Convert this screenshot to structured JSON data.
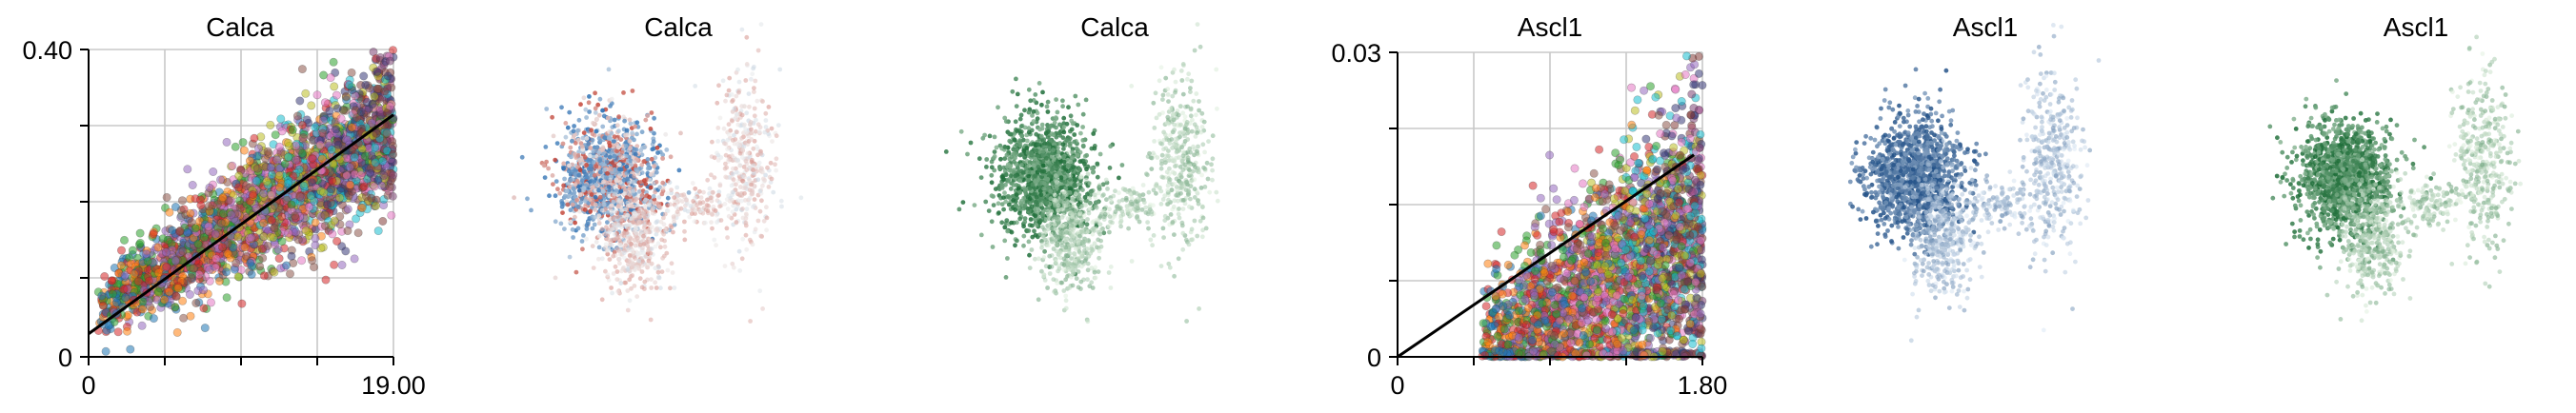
{
  "chart_data": [
    {
      "type": "scatter",
      "title": "Calca",
      "xlabel": "",
      "ylabel": "",
      "x_tick_labels": [
        "0",
        "19.00"
      ],
      "y_tick_labels": [
        "0",
        "0.40"
      ],
      "xlim": [
        0,
        19.0
      ],
      "ylim": [
        0,
        0.4
      ],
      "grid": true,
      "legend": "none",
      "point_colors": [
        "#1f77b4",
        "#ff7f0e",
        "#2ca02c",
        "#d62728",
        "#9467bd",
        "#8c564b",
        "#e377c2",
        "#bcbd22",
        "#17becf",
        "#393b79",
        "#843c39",
        "#7b4173"
      ],
      "cloud": {
        "x_range": [
          0.5,
          19.0
        ],
        "trend_y": [
          0.06,
          0.3
        ],
        "spread_y": 0.05,
        "approx_points": 2600
      },
      "fit_line": {
        "x": [
          0,
          19.0
        ],
        "y": [
          0.03,
          0.315
        ],
        "color": "#000000"
      }
    },
    {
      "type": "scatter",
      "title": "Calca",
      "subtype": "embedding",
      "colormap": "blue-white-red",
      "axes_visible": false
    },
    {
      "type": "scatter",
      "title": "Calca",
      "subtype": "embedding",
      "colormap": "greens",
      "axes_visible": false
    },
    {
      "type": "scatter",
      "title": "Ascl1",
      "xlabel": "",
      "ylabel": "",
      "x_tick_labels": [
        "0",
        "1.80"
      ],
      "y_tick_labels": [
        "0",
        "0.03"
      ],
      "xlim": [
        0,
        1.8
      ],
      "ylim": [
        0,
        0.03
      ],
      "grid": true,
      "legend": "none",
      "point_colors": [
        "#1f77b4",
        "#ff7f0e",
        "#2ca02c",
        "#d62728",
        "#9467bd",
        "#8c564b",
        "#e377c2",
        "#bcbd22",
        "#17becf",
        "#393b79",
        "#843c39",
        "#7b4173"
      ],
      "cloud": {
        "x_range": [
          0.5,
          1.8
        ],
        "trend_y": [
          0.001,
          0.012
        ],
        "spread_y": 0.007,
        "approx_points": 2600
      },
      "fit_line": {
        "x": [
          0,
          1.75
        ],
        "y": [
          0.0,
          0.0199
        ],
        "color": "#000000"
      }
    },
    {
      "type": "scatter",
      "title": "Ascl1",
      "subtype": "embedding",
      "colormap": "blues",
      "axes_visible": false
    },
    {
      "type": "scatter",
      "title": "Ascl1",
      "subtype": "embedding",
      "colormap": "greens",
      "axes_visible": false
    }
  ]
}
